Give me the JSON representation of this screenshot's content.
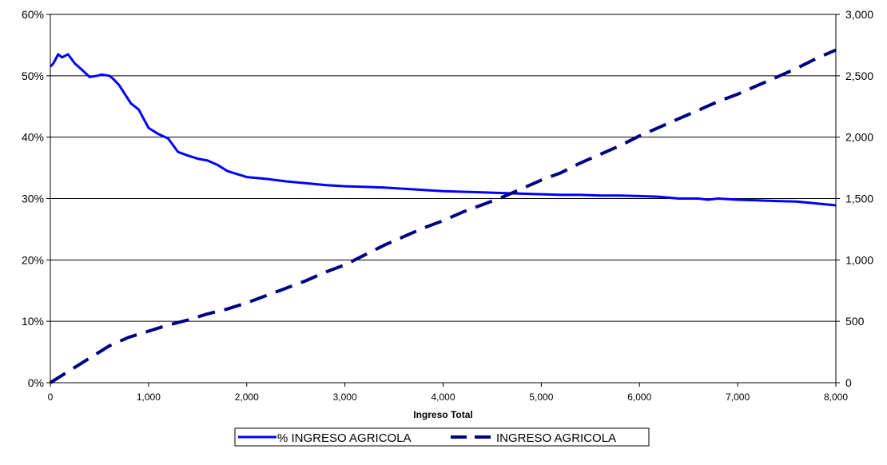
{
  "chart_data": {
    "type": "line",
    "xlabel": "Ingreso Total",
    "xlim": [
      0,
      8000
    ],
    "x_ticks": [
      "0",
      "1,000",
      "2,000",
      "3,000",
      "4,000",
      "5,000",
      "6,000",
      "7,000",
      "8,000"
    ],
    "y_left_lim": [
      0,
      0.6
    ],
    "y_left_ticks": [
      "0%",
      "10%",
      "20%",
      "30%",
      "40%",
      "50%",
      "60%"
    ],
    "y_right_lim": [
      0,
      3000
    ],
    "y_right_ticks": [
      "0",
      "500",
      "1,000",
      "1,500",
      "2,000",
      "2,500",
      "3,000"
    ],
    "grid": "horizontal",
    "legend_position": "bottom",
    "series": [
      {
        "name": "% INGRESO AGRICOLA",
        "axis": "left",
        "color": "#0000ff",
        "style": "solid",
        "x": [
          0,
          30,
          80,
          120,
          180,
          250,
          320,
          400,
          480,
          520,
          600,
          640,
          700,
          760,
          820,
          900,
          950,
          1000,
          1100,
          1200,
          1300,
          1400,
          1500,
          1600,
          1700,
          1800,
          1900,
          2000,
          2200,
          2400,
          2600,
          2800,
          3000,
          3200,
          3400,
          3600,
          3800,
          4000,
          4200,
          4400,
          4600,
          4800,
          5000,
          5200,
          5400,
          5600,
          5800,
          6000,
          6200,
          6400,
          6600,
          6700,
          6800,
          7000,
          7200,
          7400,
          7600,
          7800,
          8000
        ],
        "y": [
          0.515,
          0.52,
          0.535,
          0.53,
          0.535,
          0.52,
          0.51,
          0.498,
          0.5,
          0.502,
          0.5,
          0.495,
          0.485,
          0.47,
          0.455,
          0.445,
          0.43,
          0.415,
          0.405,
          0.398,
          0.376,
          0.37,
          0.365,
          0.362,
          0.355,
          0.345,
          0.34,
          0.335,
          0.332,
          0.328,
          0.325,
          0.322,
          0.32,
          0.319,
          0.318,
          0.316,
          0.314,
          0.312,
          0.311,
          0.31,
          0.309,
          0.308,
          0.307,
          0.306,
          0.306,
          0.305,
          0.305,
          0.304,
          0.303,
          0.3,
          0.3,
          0.298,
          0.3,
          0.298,
          0.297,
          0.296,
          0.295,
          0.292,
          0.289
        ]
      },
      {
        "name": "INGRESO AGRICOLA",
        "axis": "right",
        "color": "#000080",
        "style": "dashed",
        "x": [
          0,
          200,
          400,
          600,
          800,
          1000,
          1200,
          1400,
          1600,
          1800,
          2000,
          2200,
          2400,
          2600,
          2800,
          3000,
          3200,
          3400,
          3600,
          3800,
          4000,
          4200,
          4400,
          4600,
          4800,
          5000,
          5200,
          5400,
          5600,
          5800,
          6000,
          6200,
          6400,
          6600,
          6800,
          7000,
          7200,
          7400,
          7600,
          7800,
          8000
        ],
        "y": [
          0,
          100,
          200,
          300,
          370,
          420,
          470,
          510,
          560,
          600,
          650,
          710,
          770,
          830,
          900,
          960,
          1040,
          1120,
          1190,
          1260,
          1320,
          1390,
          1450,
          1510,
          1580,
          1650,
          1710,
          1790,
          1860,
          1930,
          2010,
          2080,
          2150,
          2220,
          2290,
          2350,
          2420,
          2490,
          2560,
          2640,
          2710
        ]
      }
    ]
  }
}
